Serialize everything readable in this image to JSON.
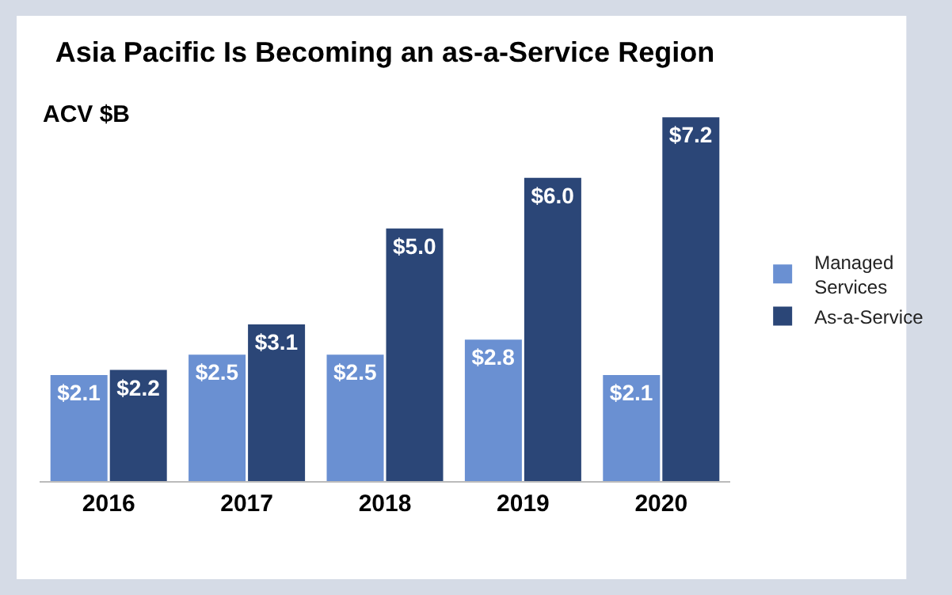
{
  "chart_data": {
    "type": "bar",
    "title": "Asia Pacific Is Becoming an as-a-Service Region",
    "ylabel": "ACV $B",
    "categories": [
      "2016",
      "2017",
      "2018",
      "2019",
      "2020"
    ],
    "series": [
      {
        "name": "Managed Services",
        "color": "#6a90d2",
        "values": [
          2.1,
          2.5,
          2.5,
          2.8,
          2.1
        ],
        "value_labels": [
          "$2.1",
          "$2.5",
          "$2.5",
          "$2.8",
          "$2.1"
        ]
      },
      {
        "name": "As-a-Service",
        "color": "#2b4677",
        "values": [
          2.2,
          3.1,
          5.0,
          6.0,
          7.2
        ],
        "value_labels": [
          "$2.2",
          "$3.1",
          "$5.0",
          "$6.0",
          "$7.2"
        ]
      }
    ],
    "legend": "right"
  }
}
